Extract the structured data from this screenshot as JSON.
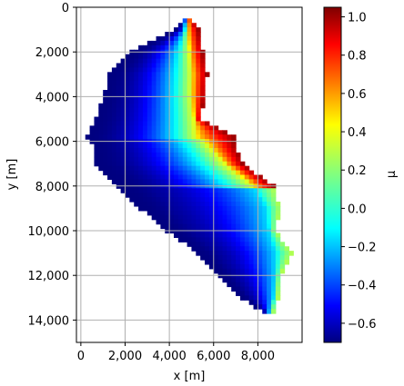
{
  "chart_data": {
    "type": "heatmap",
    "title": "",
    "xlabel": "x [m]",
    "ylabel": "y [m]",
    "xlim": [
      -200,
      10000
    ],
    "ylim": [
      15000,
      0
    ],
    "x_ticks": [
      0,
      2000,
      4000,
      6000,
      8000
    ],
    "x_tick_labels": [
      "0",
      "2,000",
      "4,000",
      "6,000",
      "8,000"
    ],
    "y_ticks": [
      0,
      2000,
      4000,
      6000,
      8000,
      10000,
      12000,
      14000
    ],
    "y_tick_labels": [
      "0",
      "2,000",
      "4,000",
      "6,000",
      "8,000",
      "10,000",
      "12,000",
      "14,000"
    ],
    "grid": true,
    "colormap": "jet",
    "colorbar": {
      "label": "μ",
      "range": [
        -0.7,
        1.05
      ],
      "ticks": [
        -0.6,
        -0.4,
        -0.2,
        0.0,
        0.2,
        0.4,
        0.6,
        0.8,
        1.0
      ],
      "tick_labels": [
        "−0.6",
        "−0.4",
        "−0.2",
        "0.0",
        "0.2",
        "0.4",
        "0.6",
        "0.8",
        "1.0"
      ]
    },
    "field": {
      "description_points_y": [
        500,
        1000,
        2000,
        3000,
        4000,
        5000,
        5800,
        6000,
        7000,
        8000,
        9000,
        10000,
        11000,
        12000,
        13000,
        13700
      ],
      "left_edge_x": [
        4600,
        4300,
        2300,
        1300,
        1000,
        700,
        300,
        500,
        700,
        1700,
        2700,
        3900,
        5300,
        6300,
        7300,
        8300
      ],
      "right_edge_x": [
        5000,
        5300,
        5500,
        5700,
        5600,
        5400,
        6900,
        6900,
        7300,
        8700,
        9000,
        8800,
        9500,
        9000,
        8900,
        8700
      ],
      "inner_edge_x": [
        4800,
        4800,
        4900,
        5000,
        5000,
        5100,
        5200,
        5600,
        6500,
        7800,
        8400,
        8500,
        8800,
        8800,
        8700,
        8500
      ],
      "min_value": -0.7,
      "max_value": 1.0
    }
  }
}
